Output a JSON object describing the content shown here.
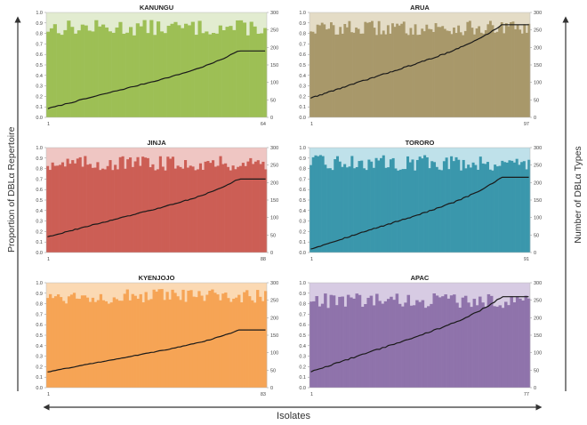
{
  "figure": {
    "left_axis_label": "Proportion of DBLα Repertoire",
    "right_axis_label": "Number of DBLα Types",
    "x_axis_label": "Isolates"
  },
  "chart_data": [
    {
      "type": "bar",
      "title": "KANUNGU",
      "n_isolates": 64,
      "x_ticks": [
        "1",
        "64"
      ],
      "ylim": [
        0,
        1.0
      ],
      "y2lim": [
        0,
        300
      ],
      "bar_color": "#9dbf55",
      "bg_color": "#e2ecd0",
      "series": [
        {
          "name": "Proportion",
          "axis": "left",
          "range": [
            0.78,
            0.93
          ],
          "trend": "flat"
        },
        {
          "name": "Number of DBLα Types",
          "axis": "right",
          "type": "line",
          "start": 25,
          "end": 190
        }
      ]
    },
    {
      "type": "bar",
      "title": "ARUA",
      "n_isolates": 97,
      "x_ticks": [
        "1",
        "97"
      ],
      "ylim": [
        0,
        1.0
      ],
      "y2lim": [
        0,
        300
      ],
      "bar_color": "#a8986a",
      "bg_color": "#e4dcc6",
      "series": [
        {
          "name": "Proportion",
          "axis": "left",
          "range": [
            0.78,
            0.92
          ],
          "trend": "flat"
        },
        {
          "name": "Number of DBLα Types",
          "axis": "right",
          "type": "line",
          "start": 55,
          "end": 265
        }
      ]
    },
    {
      "type": "bar",
      "title": "JINJA",
      "n_isolates": 88,
      "x_ticks": [
        "1",
        "88"
      ],
      "ylim": [
        0,
        1.0
      ],
      "y2lim": [
        0,
        300
      ],
      "bar_color": "#cc5e55",
      "bg_color": "#efc6c3",
      "series": [
        {
          "name": "Proportion",
          "axis": "left",
          "range": [
            0.78,
            0.92
          ],
          "trend": "flat"
        },
        {
          "name": "Number of DBLα Types",
          "axis": "right",
          "type": "line",
          "start": 45,
          "end": 210
        }
      ]
    },
    {
      "type": "bar",
      "title": "TORORO",
      "n_isolates": 91,
      "x_ticks": [
        "1",
        "91"
      ],
      "ylim": [
        0,
        1.0
      ],
      "y2lim": [
        0,
        300
      ],
      "bar_color": "#3a97ac",
      "bg_color": "#bfe1ea",
      "series": [
        {
          "name": "Proportion",
          "axis": "left",
          "range": [
            0.78,
            0.93
          ],
          "trend": "flat"
        },
        {
          "name": "Number of DBLα Types",
          "axis": "right",
          "type": "line",
          "start": 10,
          "end": 215
        }
      ]
    },
    {
      "type": "bar",
      "title": "KYENJOJO",
      "n_isolates": 83,
      "x_ticks": [
        "1",
        "83"
      ],
      "ylim": [
        0,
        1.0
      ],
      "y2lim": [
        0,
        300
      ],
      "bar_color": "#f6a455",
      "bg_color": "#fbd9b3",
      "series": [
        {
          "name": "Proportion",
          "axis": "left",
          "range": [
            0.8,
            0.94
          ],
          "trend": "flat"
        },
        {
          "name": "Number of DBLα Types",
          "axis": "right",
          "type": "line",
          "start": 45,
          "end": 165
        }
      ]
    },
    {
      "type": "bar",
      "title": "APAC",
      "n_isolates": 77,
      "x_ticks": [
        "1",
        "77"
      ],
      "ylim": [
        0,
        1.0
      ],
      "y2lim": [
        0,
        300
      ],
      "bar_color": "#8f73ab",
      "bg_color": "#d7cbe3",
      "series": [
        {
          "name": "Proportion",
          "axis": "left",
          "range": [
            0.76,
            0.9
          ],
          "trend": "flat"
        },
        {
          "name": "Number of DBLα Types",
          "axis": "right",
          "type": "line",
          "start": 45,
          "end": 260
        }
      ]
    }
  ]
}
